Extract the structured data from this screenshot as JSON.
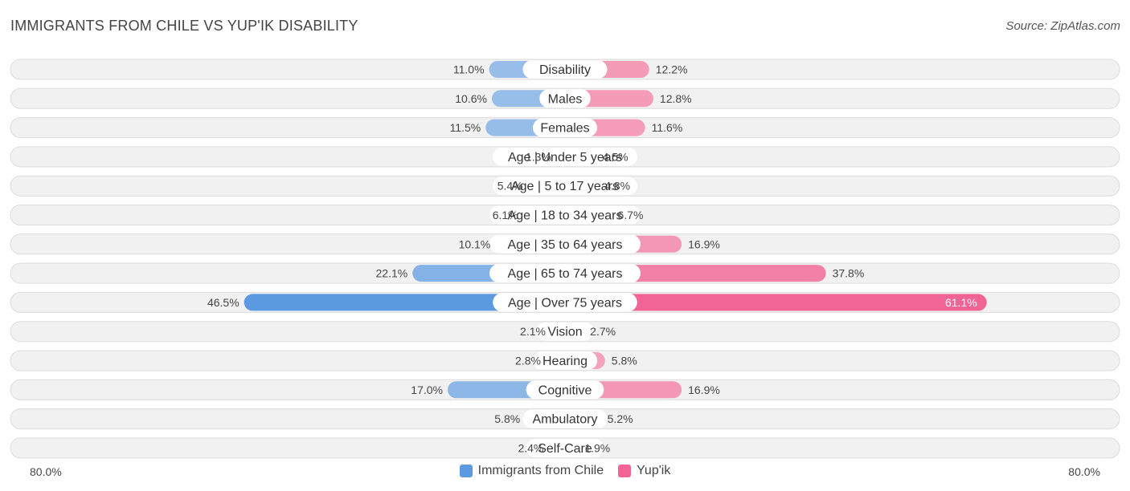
{
  "title": "IMMIGRANTS FROM CHILE VS YUP'IK DISABILITY",
  "source": "Source: ZipAtlas.com",
  "colors": {
    "left_light": "#a9c8eb",
    "left_dark": "#5b9ae0",
    "right_light": "#f5a9c1",
    "right_dark": "#f06595"
  },
  "chart_data": {
    "type": "bar",
    "orientation": "horizontal-diverging",
    "axis_min_label": "80.0%",
    "axis_max_label": "80.0%",
    "xlim": [
      0,
      80
    ],
    "series": [
      {
        "name": "Immigrants from Chile",
        "values": [
          11.0,
          10.6,
          11.5,
          1.3,
          5.4,
          6.1,
          10.1,
          22.1,
          46.5,
          2.1,
          2.8,
          17.0,
          5.8,
          2.4
        ]
      },
      {
        "name": "Yup'ik",
        "values": [
          12.2,
          12.8,
          11.6,
          4.5,
          4.8,
          6.7,
          16.9,
          37.8,
          61.1,
          2.7,
          5.8,
          16.9,
          5.2,
          1.9
        ]
      }
    ],
    "categories": [
      "Disability",
      "Males",
      "Females",
      "Age | Under 5 years",
      "Age | 5 to 17 years",
      "Age | 18 to 34 years",
      "Age | 35 to 64 years",
      "Age | 65 to 74 years",
      "Age | Over 75 years",
      "Vision",
      "Hearing",
      "Cognitive",
      "Ambulatory",
      "Self-Care"
    ],
    "left_labels": [
      "11.0%",
      "10.6%",
      "11.5%",
      "1.3%",
      "5.4%",
      "6.1%",
      "10.1%",
      "22.1%",
      "46.5%",
      "2.1%",
      "2.8%",
      "17.0%",
      "5.8%",
      "2.4%"
    ],
    "right_labels": [
      "12.2%",
      "12.8%",
      "11.6%",
      "4.5%",
      "4.8%",
      "6.7%",
      "16.9%",
      "37.8%",
      "61.1%",
      "2.7%",
      "5.8%",
      "16.9%",
      "5.2%",
      "1.9%"
    ],
    "legend_position": "bottom-center"
  }
}
